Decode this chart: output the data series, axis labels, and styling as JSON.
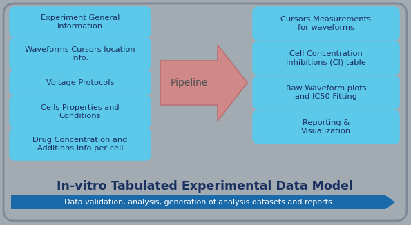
{
  "background_color": "#a2aab2",
  "box_fill_color": "#5cc8ea",
  "box_edge_color": "#5cc8ea",
  "arrow_fill_color": "#d08888",
  "arrow_edge_color": "#b87070",
  "bottom_arrow_color": "#1a6aaa",
  "title_color": "#1a3060",
  "subtitle_text_color": "#ffffff",
  "left_boxes": [
    "Experiment General\nInformation",
    "Waveforms Cursors location\nInfo.",
    "Voltage Protocols",
    "Cells Properties and\nConditions",
    "Drug Concentration and\nAdditions Info per cell"
  ],
  "right_boxes": [
    "Cursors Measurements\nfor waveforms",
    "Cell Concentration\nInhibitions (CI) table",
    "Raw Waveform plots\nand IC50 Fitting",
    "Reporting &\nVisualization"
  ],
  "pipeline_label": "Pipeline",
  "title": "In-vitro Tabulated Experimental Data Model",
  "subtitle": "Data validation, analysis, generation of analysis datasets and reports",
  "figsize": [
    5.95,
    3.26
  ],
  "dpi": 100
}
